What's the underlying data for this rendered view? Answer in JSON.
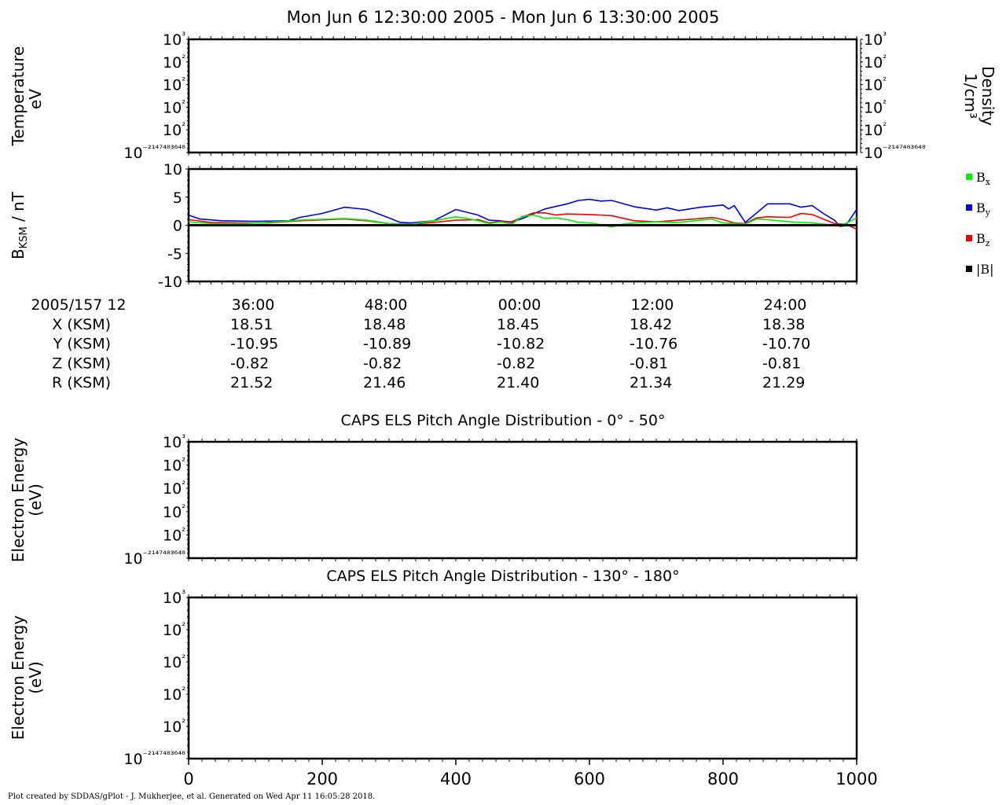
{
  "title": "Mon Jun 6 12:30:00 2005 - Mon Jun 6 13:30:00 2005",
  "footer": "Plot created by SDDAS/gPlot - J. Mukherjee, et al.  Generated on Wed Apr 11 16:05:28 2018.",
  "chart_data": [
    {
      "type": "line",
      "id": "temperature-density",
      "left_ylabel": [
        "Temperature",
        "eV"
      ],
      "right_ylabel": [
        "Density",
        "1/cm³"
      ],
      "left_yticks": [
        "10³",
        "10²",
        "10²",
        "10²",
        "10²",
        "10⁻²¹⁴⁷⁴⁸³⁶⁴⁸"
      ],
      "right_yticks": [
        "10³",
        "10²",
        "10²",
        "10²",
        "10²",
        "10⁻²¹⁴⁷⁴⁸³⁶⁴⁸"
      ],
      "series": []
    },
    {
      "type": "line",
      "id": "magnetic-field",
      "ylabel": "B_KSM / nT",
      "ylim": [
        -10,
        10
      ],
      "yticks": [
        10,
        5,
        0,
        -5,
        -10
      ],
      "x_minutes_from_start": [
        0,
        60
      ],
      "legend": [
        {
          "name": "Bx",
          "color": "#00ee00"
        },
        {
          "name": "By",
          "color": "#0000dd"
        },
        {
          "name": "Bz",
          "color": "#ee0000"
        },
        {
          "name": "|B|",
          "color": "#000000"
        }
      ],
      "series": [
        {
          "name": "By",
          "color": "#0000dd",
          "x": [
            0,
            1,
            3,
            6,
            9,
            10,
            12,
            14,
            16,
            18,
            19,
            20,
            22,
            24,
            26,
            27,
            28,
            29,
            30,
            32,
            34,
            35,
            36,
            37,
            38,
            40,
            42,
            43,
            44,
            46,
            48,
            48.5,
            49,
            50,
            52,
            54,
            55,
            56,
            57,
            58,
            58.5,
            59,
            60
          ],
          "y": [
            1.8,
            1.1,
            0.8,
            0.7,
            0.8,
            1.4,
            2.1,
            3.2,
            2.8,
            1.3,
            0.5,
            0.4,
            0.8,
            2.8,
            1.8,
            0.9,
            0.8,
            0.5,
            1.2,
            2.9,
            3.8,
            4.4,
            4.6,
            4.3,
            4.4,
            3.3,
            2.7,
            3.1,
            2.6,
            3.2,
            3.6,
            2.9,
            3.5,
            0.5,
            3.8,
            3.8,
            3.2,
            3.5,
            2.1,
            0.9,
            -0.2,
            -0.1,
            2.8
          ]
        },
        {
          "name": "Bz",
          "color": "#ee0000",
          "x": [
            0,
            2,
            5,
            7,
            10,
            14,
            16,
            18,
            20,
            22,
            24,
            26,
            27,
            28,
            29,
            30,
            31,
            32,
            33,
            34,
            36,
            38,
            40,
            42,
            44,
            46,
            47,
            48,
            49,
            50,
            51,
            52,
            54,
            55,
            56,
            58,
            59,
            60
          ],
          "y": [
            1.0,
            0.5,
            0.4,
            0.4,
            0.8,
            1.1,
            0.8,
            0.3,
            0.2,
            0.5,
            0.9,
            1.0,
            0.4,
            0.7,
            0.6,
            1.5,
            2.2,
            2.2,
            1.8,
            2.0,
            1.9,
            1.7,
            0.8,
            0.6,
            0.9,
            1.2,
            1.4,
            1.0,
            0.4,
            0.3,
            1.3,
            1.5,
            1.4,
            2.1,
            1.9,
            0.3,
            0.2,
            -0.7
          ]
        },
        {
          "name": "Bx",
          "color": "#00ee00",
          "x": [
            0,
            2,
            5,
            7,
            10,
            14,
            16,
            18,
            20,
            22,
            24,
            25,
            26,
            27,
            28,
            29,
            30,
            31,
            32,
            33,
            34,
            35,
            36,
            37,
            38,
            39,
            40,
            42,
            44,
            46,
            47,
            48,
            50,
            51,
            52,
            54,
            56,
            58,
            59,
            60
          ],
          "y": [
            0.6,
            0.3,
            0.3,
            0.5,
            0.9,
            1.2,
            0.9,
            0.3,
            0.2,
            0.8,
            1.5,
            1.2,
            0.8,
            0.3,
            0.6,
            0.2,
            1.6,
            1.8,
            1.2,
            1.3,
            1.0,
            0.5,
            0.4,
            0.1,
            -0.3,
            0.2,
            0.4,
            0.6,
            0.5,
            0.9,
            1.1,
            0.4,
            0.2,
            1.1,
            1.0,
            0.6,
            0.4,
            0.0,
            0.3,
            1.3
          ]
        },
        {
          "name": "|B|",
          "color": "#000000",
          "x": [
            0,
            60
          ],
          "y": [
            0,
            0
          ]
        }
      ]
    },
    {
      "type": "table",
      "id": "ephemeris",
      "header": [
        "2005/157 12",
        "36:00",
        "48:00",
        "00:00",
        "12:00",
        "24:00"
      ],
      "rows": [
        [
          "X (KSM)",
          "18.51",
          "18.48",
          "18.45",
          "18.42",
          "18.38"
        ],
        [
          "Y (KSM)",
          "-10.95",
          "-10.89",
          "-10.82",
          "-10.76",
          "-10.70"
        ],
        [
          "Z (KSM)",
          "-0.82",
          "-0.82",
          "-0.82",
          "-0.81",
          "-0.81"
        ],
        [
          "R (KSM)",
          "21.52",
          "21.46",
          "21.40",
          "21.34",
          "21.29"
        ]
      ]
    },
    {
      "type": "heatmap",
      "id": "pad-low",
      "title": "CAPS ELS Pitch Angle Distribution - 0° - 50°",
      "ylabel": [
        "Electron Energy",
        "(eV)"
      ],
      "yticks": [
        "10³",
        "10²",
        "10²",
        "10²",
        "10²",
        "10⁻²¹⁴⁷⁴⁸³⁶⁴⁸"
      ],
      "series": []
    },
    {
      "type": "heatmap",
      "id": "pad-high",
      "title": "CAPS ELS Pitch Angle Distribution - 130° - 180°",
      "ylabel": [
        "Electron Energy",
        "(eV)"
      ],
      "yticks": [
        "10³",
        "10²",
        "10²",
        "10²",
        "10²",
        "10⁻²¹⁴⁷⁴⁸³⁶⁴⁸"
      ],
      "xlim": [
        0,
        1000
      ],
      "xticks": [
        0,
        200,
        400,
        600,
        800,
        1000
      ],
      "series": []
    }
  ]
}
